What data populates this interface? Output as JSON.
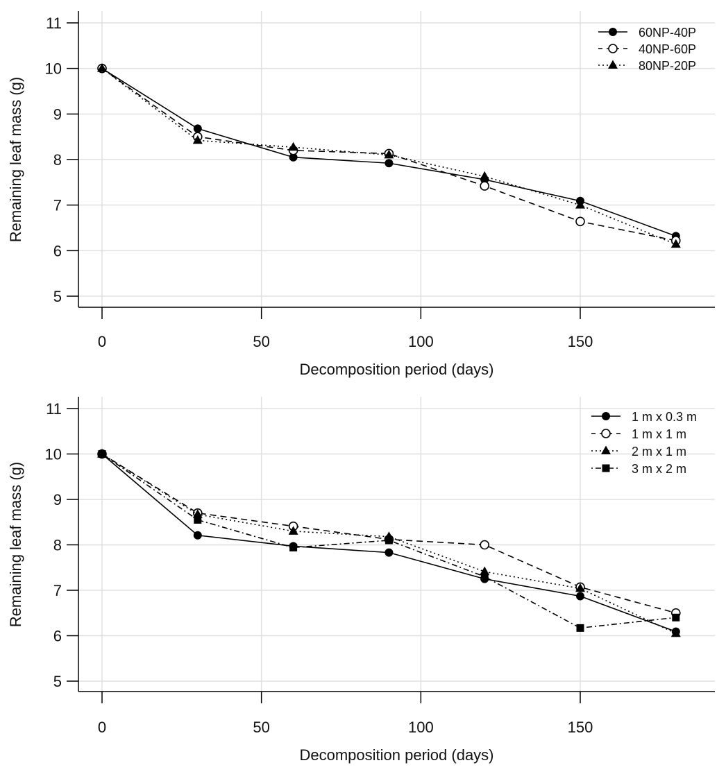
{
  "chart_data": [
    {
      "type": "line",
      "title": "",
      "xlabel": "Decomposition period (days)",
      "ylabel": "Remaining leaf mass (g)",
      "xlim": [
        -15,
        193
      ],
      "ylim": [
        4.75,
        11.25
      ],
      "xticks": [
        0,
        50,
        100,
        150
      ],
      "yticks": [
        5,
        6,
        7,
        8,
        9,
        10,
        11
      ],
      "grid": true,
      "legend_position": "top-right",
      "x": [
        0,
        30,
        60,
        90,
        120,
        150,
        180
      ],
      "series": [
        {
          "name": "60NP-40P",
          "marker": "filled-circle",
          "line": "solid",
          "values": [
            10,
            8.68,
            8.05,
            7.92,
            7.56,
            7.09,
            6.32
          ]
        },
        {
          "name": "40NP-60P",
          "marker": "open-circle",
          "line": "dashed",
          "values": [
            10,
            8.5,
            8.2,
            8.13,
            7.42,
            6.64,
            6.22
          ]
        },
        {
          "name": "80NP-20P",
          "marker": "filled-triangle",
          "line": "dotted",
          "values": [
            10,
            8.42,
            8.27,
            8.1,
            7.63,
            7.0,
            6.14
          ]
        }
      ]
    },
    {
      "type": "line",
      "title": "",
      "xlabel": "Decomposition period (days)",
      "ylabel": "Remaining leaf mass (g)",
      "xlim": [
        -15,
        193
      ],
      "ylim": [
        4.75,
        11.25
      ],
      "xticks": [
        0,
        50,
        100,
        150
      ],
      "yticks": [
        5,
        6,
        7,
        8,
        9,
        10,
        11
      ],
      "grid": true,
      "legend_position": "top-right",
      "x": [
        0,
        30,
        60,
        90,
        120,
        150,
        180
      ],
      "series": [
        {
          "name": "1 m x 0.3 m",
          "marker": "filled-circle",
          "line": "solid",
          "values": [
            10,
            8.21,
            7.97,
            7.83,
            7.25,
            6.87,
            6.09
          ]
        },
        {
          "name": "1 m x 1 m",
          "marker": "open-circle",
          "line": "dashed",
          "values": [
            10,
            8.7,
            8.41,
            8.12,
            8.0,
            7.07,
            6.5
          ]
        },
        {
          "name": "2 m x 1 m",
          "marker": "filled-triangle",
          "line": "dotted",
          "values": [
            10,
            8.67,
            8.3,
            8.18,
            7.41,
            7.04,
            6.05
          ]
        },
        {
          "name": "3 m x 2 m",
          "marker": "filled-square",
          "line": "dotdash",
          "values": [
            10,
            8.55,
            7.94,
            8.1,
            7.3,
            6.17,
            6.4
          ]
        }
      ]
    }
  ]
}
